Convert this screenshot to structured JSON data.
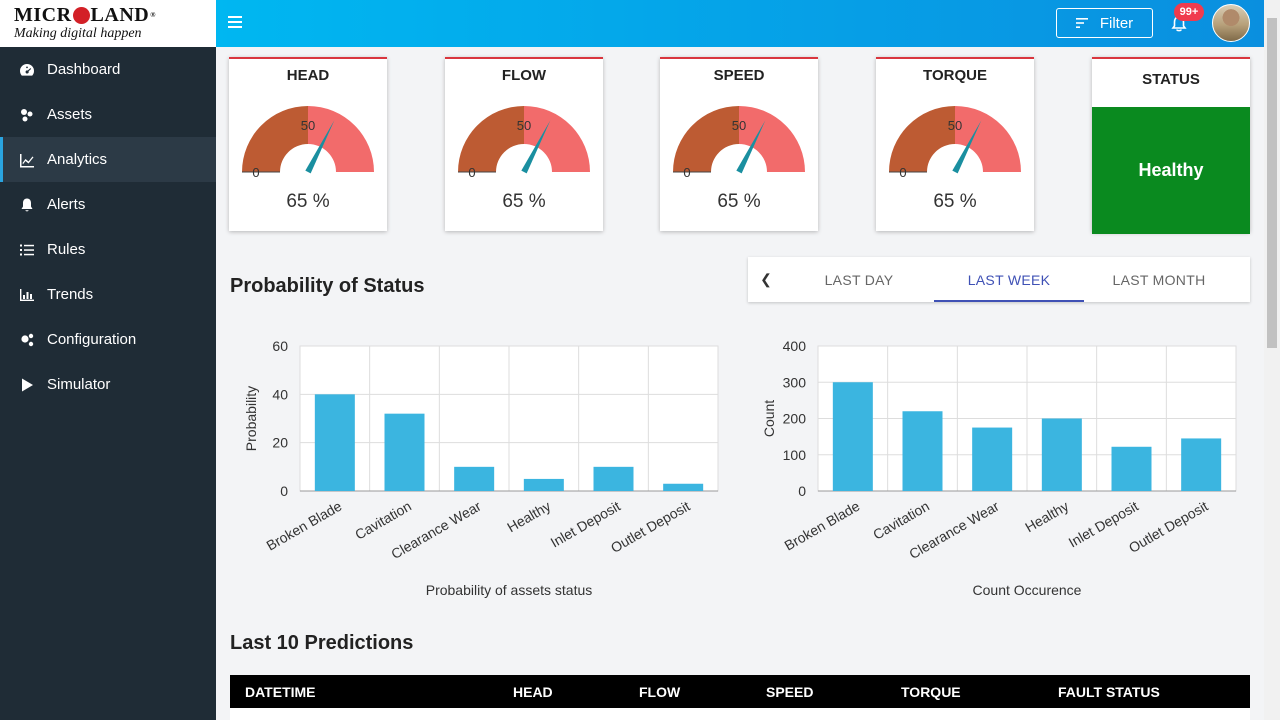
{
  "brand": {
    "name_left": "MICR",
    "name_right": "LAND",
    "reg": "®",
    "tagline": "Making digital happen"
  },
  "sidebar": {
    "items": [
      {
        "label": "Dashboard",
        "icon": "dashboard-icon",
        "active": false
      },
      {
        "label": "Assets",
        "icon": "assets-icon",
        "active": false
      },
      {
        "label": "Analytics",
        "icon": "analytics-icon",
        "active": true
      },
      {
        "label": "Alerts",
        "icon": "bell-icon",
        "active": false
      },
      {
        "label": "Rules",
        "icon": "list-icon",
        "active": false
      },
      {
        "label": "Trends",
        "icon": "bar-chart-icon",
        "active": false
      },
      {
        "label": "Configuration",
        "icon": "gears-icon",
        "active": false
      },
      {
        "label": "Simulator",
        "icon": "play-icon",
        "active": false
      }
    ]
  },
  "header": {
    "filter_label": "Filter",
    "notification_count": "99+"
  },
  "gauges": [
    {
      "title": "HEAD",
      "value": "65 %",
      "min_label": "0",
      "mid_label": "50",
      "fraction": 0.65
    },
    {
      "title": "FLOW",
      "value": "65 %",
      "min_label": "0",
      "mid_label": "50",
      "fraction": 0.65
    },
    {
      "title": "SPEED",
      "value": "65 %",
      "min_label": "0",
      "mid_label": "50",
      "fraction": 0.65
    },
    {
      "title": "TORQUE",
      "value": "65 %",
      "min_label": "0",
      "mid_label": "50",
      "fraction": 0.65
    }
  ],
  "colors": {
    "gauge_low": "#bd5b33",
    "gauge_high": "#f26b6b",
    "needle": "#1a8fa0",
    "bar": "#3bb5e0",
    "status_ok": "#0a8a1f"
  },
  "status": {
    "title": "STATUS",
    "value": "Healthy"
  },
  "probability_section": {
    "title": "Probability of Status"
  },
  "tabs": {
    "items": [
      "LAST DAY",
      "LAST WEEK",
      "LAST MONTH"
    ],
    "active": "LAST WEEK"
  },
  "chart_data": [
    {
      "type": "bar",
      "title": "",
      "categories": [
        "Broken Blade",
        "Cavitation",
        "Clearance Wear",
        "Healthy",
        "Inlet Deposit",
        "Outlet Deposit"
      ],
      "values": [
        40,
        32,
        10,
        5,
        10,
        3
      ],
      "xlabel": "Probability of assets status",
      "ylabel": "Probability",
      "ylim": [
        0,
        60
      ],
      "yticks": [
        0,
        20,
        40,
        60
      ],
      "grid": true
    },
    {
      "type": "bar",
      "title": "",
      "categories": [
        "Broken Blade",
        "Cavitation",
        "Clearance Wear",
        "Healthy",
        "Inlet Deposit",
        "Outlet Deposit"
      ],
      "values": [
        300,
        220,
        175,
        200,
        122,
        145
      ],
      "xlabel": "Count Occurence",
      "ylabel": "Count",
      "ylim": [
        0,
        400
      ],
      "yticks": [
        0,
        100,
        200,
        300,
        400
      ],
      "grid": true
    }
  ],
  "predictions": {
    "title": "Last 10 Predictions",
    "columns": [
      "DATETIME",
      "HEAD",
      "FLOW",
      "SPEED",
      "TORQUE",
      "FAULT STATUS"
    ]
  }
}
